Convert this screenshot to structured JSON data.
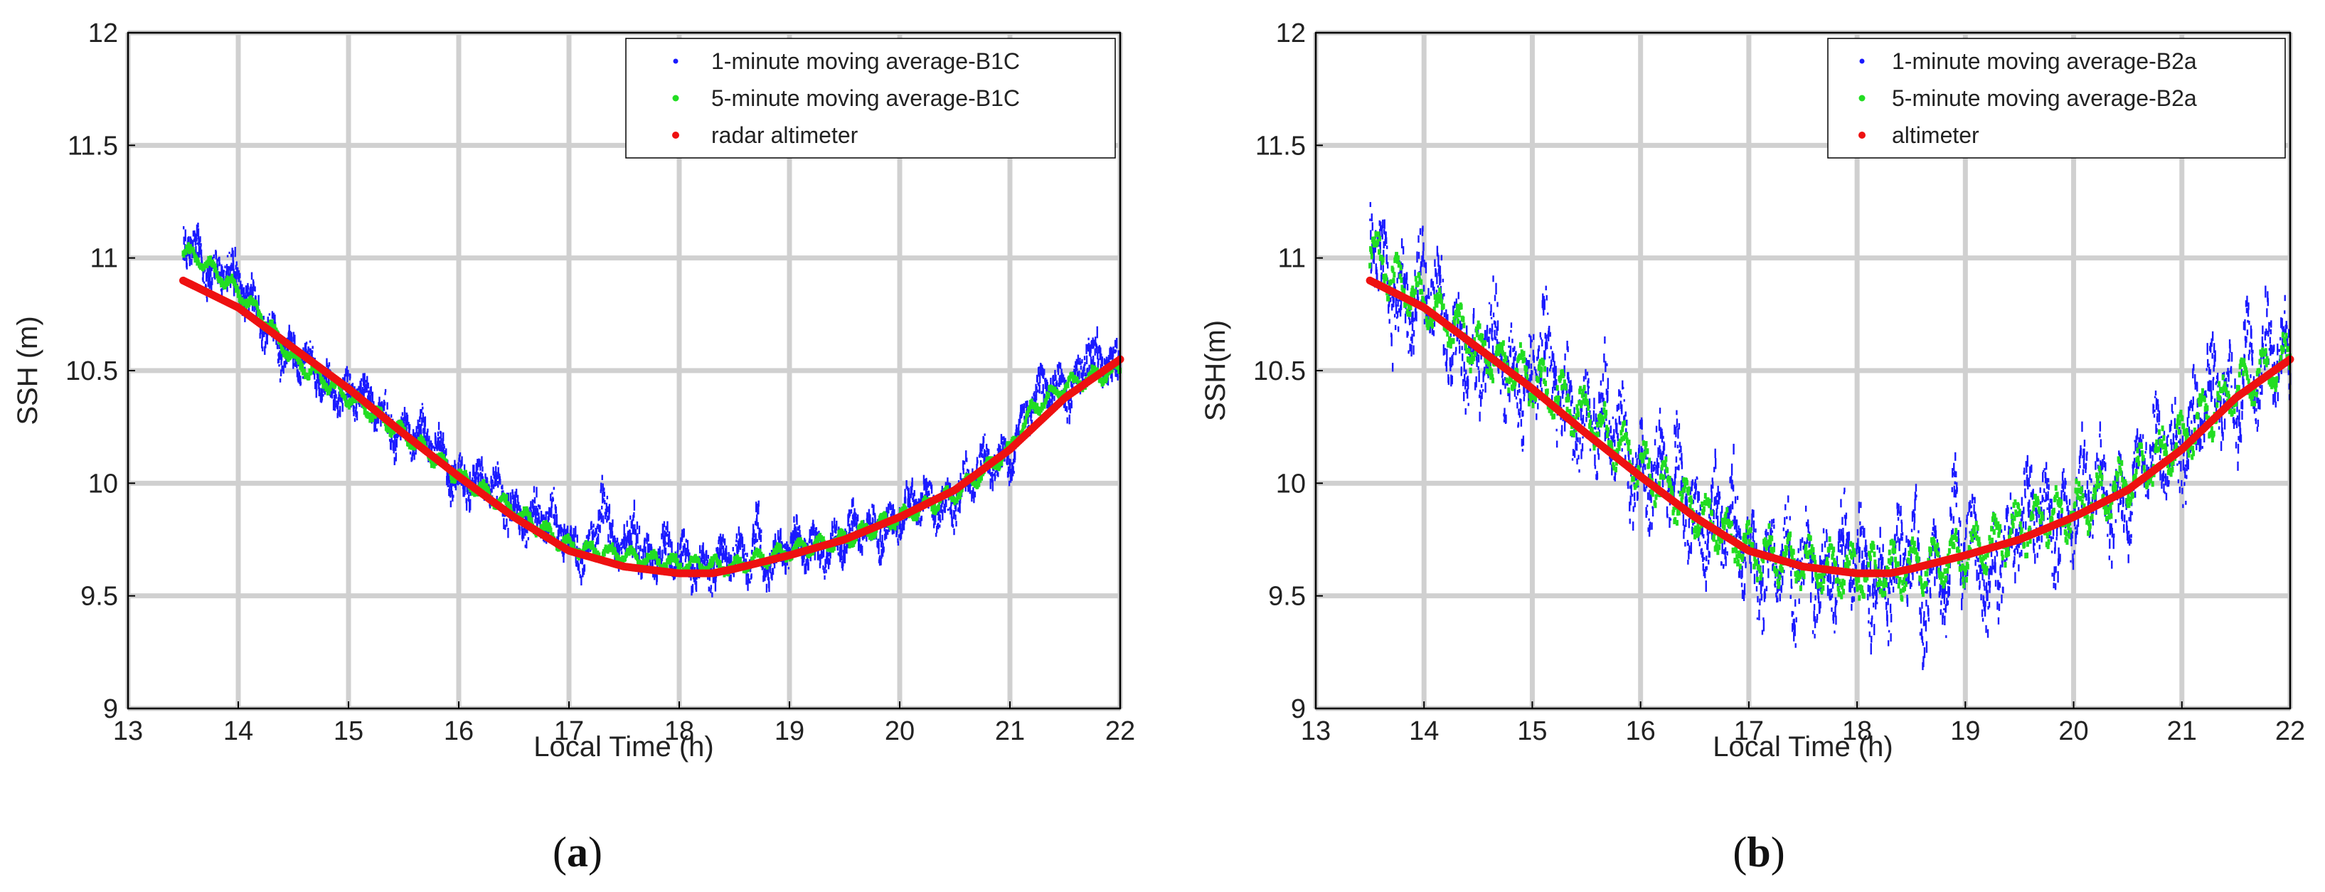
{
  "colors": {
    "one_minute": "#1a1aff",
    "five_minute": "#22dd22",
    "altimeter": "#ee1111",
    "grid": "#d0d0d0",
    "axis": "#000000"
  },
  "chart_data": [
    {
      "id": "a",
      "type": "scatter",
      "panel_label_open": "(",
      "panel_label_letter": "a",
      "panel_label_close": ")",
      "xlabel": "Local Time (h)",
      "ylabel": "SSH (m)",
      "xlim": [
        13,
        22
      ],
      "ylim": [
        9,
        12
      ],
      "xticks": [
        13,
        14,
        15,
        16,
        17,
        18,
        19,
        20,
        21,
        22
      ],
      "yticks": [
        9,
        9.5,
        10,
        10.5,
        11,
        11.5,
        12
      ],
      "ytick_labels": [
        "9",
        "9.5",
        "10",
        "10.5",
        "11",
        "11.5",
        "12"
      ],
      "grid": true,
      "legend_position": "top-right",
      "series": [
        {
          "name": "1-minute moving average-B1C",
          "style": "dots",
          "color_key": "one_minute",
          "noise": 0.09,
          "spikes": [
            [
              17.3,
              0.35
            ],
            [
              17.6,
              0.3
            ],
            [
              18.7,
              0.25
            ],
            [
              21.7,
              0.2
            ],
            [
              13.9,
              0.15
            ]
          ],
          "x": [
            13.5,
            13.7,
            14.0,
            14.2,
            14.5,
            15.0,
            15.5,
            16.0,
            16.5,
            17.0,
            17.5,
            18.0,
            18.5,
            19.0,
            19.5,
            20.0,
            20.5,
            21.0,
            21.2,
            21.5,
            21.8,
            22.0
          ],
          "y": [
            11.05,
            11.0,
            10.85,
            10.75,
            10.55,
            10.4,
            10.25,
            10.05,
            9.9,
            9.75,
            9.7,
            9.65,
            9.65,
            9.7,
            9.75,
            9.85,
            9.95,
            10.15,
            10.35,
            10.45,
            10.5,
            10.5
          ]
        },
        {
          "name": "5-minute moving average-B1C",
          "style": "band",
          "color_key": "five_minute",
          "noise": 0.03,
          "x": [
            13.5,
            13.7,
            14.0,
            14.2,
            14.5,
            15.0,
            15.5,
            16.0,
            16.5,
            17.0,
            17.5,
            18.0,
            18.5,
            19.0,
            19.5,
            20.0,
            20.5,
            21.0,
            21.2,
            21.5,
            21.8,
            22.0
          ],
          "y": [
            11.03,
            10.98,
            10.85,
            10.75,
            10.55,
            10.38,
            10.22,
            10.03,
            9.88,
            9.72,
            9.68,
            9.64,
            9.63,
            9.7,
            9.75,
            9.85,
            9.95,
            10.15,
            10.33,
            10.43,
            10.48,
            10.5
          ]
        },
        {
          "name": "radar altimeter",
          "style": "thick",
          "color_key": "altimeter",
          "x": [
            13.5,
            14.0,
            14.5,
            15.0,
            15.5,
            16.0,
            16.5,
            17.0,
            17.5,
            18.0,
            18.3,
            18.5,
            19.0,
            19.5,
            20.0,
            20.5,
            21.0,
            21.5,
            22.0
          ],
          "y": [
            10.9,
            10.78,
            10.6,
            10.42,
            10.22,
            10.03,
            9.85,
            9.7,
            9.63,
            9.6,
            9.6,
            9.62,
            9.68,
            9.75,
            9.85,
            9.97,
            10.15,
            10.38,
            10.55
          ]
        }
      ]
    },
    {
      "id": "b",
      "type": "scatter",
      "panel_label_open": "(",
      "panel_label_letter": "b",
      "panel_label_close": ")",
      "xlabel": "Local Time (h)",
      "ylabel": "SSH(m)",
      "xlim": [
        13,
        22
      ],
      "ylim": [
        9,
        12
      ],
      "xticks": [
        13,
        14,
        15,
        16,
        17,
        18,
        19,
        20,
        21,
        22
      ],
      "yticks": [
        9,
        9.5,
        10,
        10.5,
        11,
        11.5,
        12
      ],
      "ytick_labels": [
        "9",
        "9.5",
        "10",
        "10.5",
        "11",
        "11.5",
        "12"
      ],
      "grid": true,
      "legend_position": "top-right",
      "series": [
        {
          "name": "1-minute moving average-B2a",
          "style": "dots",
          "color_key": "one_minute",
          "noise": 0.2,
          "spikes": [
            [
              15.1,
              0.45
            ],
            [
              17.4,
              -0.5
            ],
            [
              18.6,
              -0.5
            ],
            [
              18.9,
              0.45
            ],
            [
              19.2,
              -0.45
            ],
            [
              21.6,
              0.35
            ],
            [
              14.5,
              -0.35
            ]
          ],
          "x": [
            13.5,
            13.7,
            14.0,
            14.5,
            15.0,
            15.5,
            16.0,
            16.5,
            17.0,
            17.5,
            18.0,
            18.5,
            19.0,
            19.5,
            20.0,
            20.5,
            21.0,
            21.5,
            22.0
          ],
          "y": [
            11.05,
            10.9,
            10.8,
            10.6,
            10.45,
            10.3,
            10.1,
            9.9,
            9.7,
            9.65,
            9.6,
            9.65,
            9.65,
            9.8,
            9.9,
            10.0,
            10.2,
            10.45,
            10.55
          ]
        },
        {
          "name": "5-minute moving average-B2a",
          "style": "band",
          "color_key": "five_minute",
          "noise": 0.09,
          "x": [
            13.5,
            13.7,
            14.0,
            14.5,
            15.0,
            15.5,
            16.0,
            16.5,
            17.0,
            17.5,
            18.0,
            18.5,
            19.0,
            19.5,
            20.0,
            20.5,
            21.0,
            21.5,
            22.0
          ],
          "y": [
            11.05,
            10.92,
            10.8,
            10.6,
            10.45,
            10.3,
            10.08,
            9.88,
            9.7,
            9.65,
            9.6,
            9.62,
            9.68,
            9.8,
            9.88,
            10.0,
            10.2,
            10.42,
            10.55
          ]
        },
        {
          "name": "altimeter",
          "style": "thick",
          "color_key": "altimeter",
          "x": [
            13.5,
            14.0,
            14.5,
            15.0,
            15.5,
            16.0,
            16.5,
            17.0,
            17.5,
            18.0,
            18.3,
            18.5,
            19.0,
            19.5,
            20.0,
            20.5,
            21.0,
            21.5,
            22.0
          ],
          "y": [
            10.9,
            10.78,
            10.6,
            10.42,
            10.22,
            10.03,
            9.85,
            9.7,
            9.63,
            9.6,
            9.6,
            9.62,
            9.68,
            9.75,
            9.85,
            9.97,
            10.15,
            10.38,
            10.55
          ]
        }
      ]
    }
  ]
}
